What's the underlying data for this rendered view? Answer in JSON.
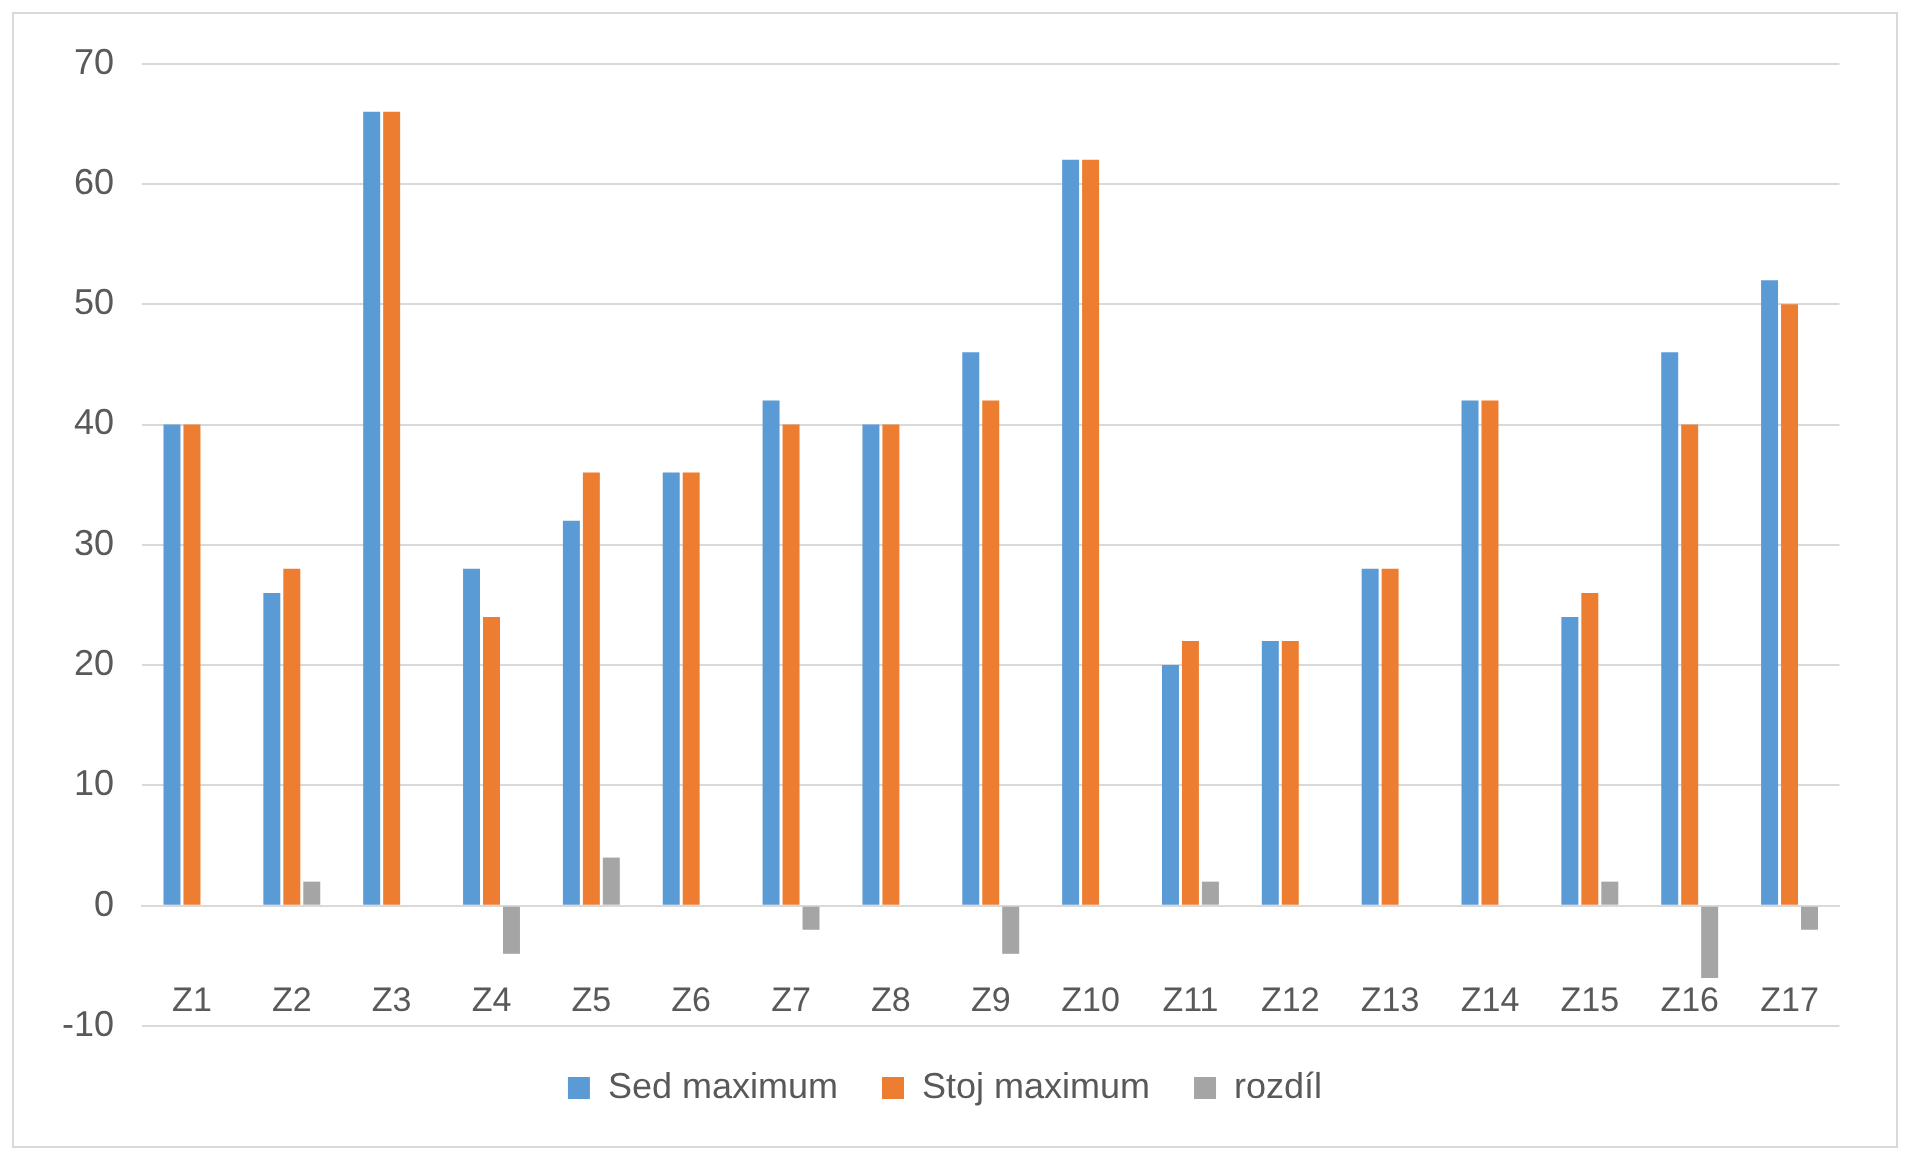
{
  "chart_data": {
    "type": "bar",
    "categories": [
      "Z1",
      "Z2",
      "Z3",
      "Z4",
      "Z5",
      "Z6",
      "Z7",
      "Z8",
      "Z9",
      "Z10",
      "Z11",
      "Z12",
      "Z13",
      "Z14",
      "Z15",
      "Z16",
      "Z17"
    ],
    "series": [
      {
        "name": "Sed maximum",
        "color": "#5b9bd5",
        "values": [
          40,
          26,
          66,
          28,
          32,
          36,
          42,
          40,
          46,
          62,
          20,
          22,
          28,
          42,
          24,
          46,
          52
        ]
      },
      {
        "name": "Stoj maximum",
        "color": "#ed7d31",
        "values": [
          40,
          28,
          66,
          24,
          36,
          36,
          40,
          40,
          42,
          62,
          22,
          22,
          28,
          42,
          26,
          40,
          50
        ]
      },
      {
        "name": "rozdíl",
        "color": "#a5a5a5",
        "values": [
          0,
          2,
          0,
          -4,
          4,
          0,
          -2,
          0,
          -4,
          0,
          2,
          0,
          0,
          0,
          2,
          -6,
          -2
        ]
      }
    ],
    "ylim": [
      -10,
      70
    ],
    "yticks": [
      -10,
      0,
      10,
      20,
      30,
      40,
      50,
      60,
      70
    ],
    "grid": "y",
    "legend": "bottom"
  }
}
